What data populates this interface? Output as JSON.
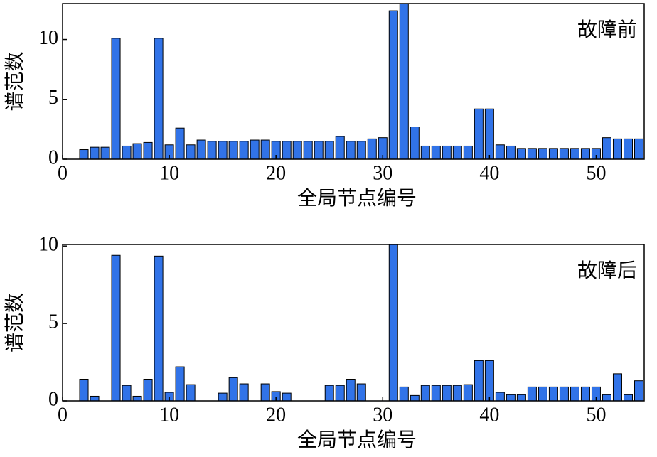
{
  "chart_data": [
    {
      "type": "bar",
      "annotation": "故障前",
      "xlabel": "全局节点编号",
      "ylabel": "谱范数",
      "x": [
        2,
        3,
        4,
        5,
        6,
        7,
        8,
        9,
        10,
        11,
        12,
        13,
        14,
        15,
        16,
        17,
        18,
        19,
        20,
        21,
        22,
        23,
        24,
        25,
        26,
        27,
        28,
        29,
        30,
        31,
        32,
        33,
        34,
        35,
        36,
        37,
        38,
        39,
        40,
        41,
        42,
        43,
        44,
        45,
        46,
        47,
        48,
        49,
        50,
        51,
        52,
        53,
        54
      ],
      "values": [
        0.8,
        1.0,
        1.0,
        10.1,
        1.1,
        1.3,
        1.4,
        10.1,
        1.2,
        2.6,
        1.2,
        1.6,
        1.5,
        1.5,
        1.5,
        1.5,
        1.6,
        1.6,
        1.5,
        1.5,
        1.5,
        1.5,
        1.5,
        1.5,
        1.9,
        1.5,
        1.5,
        1.7,
        1.8,
        12.4,
        13,
        2.7,
        1.1,
        1.1,
        1.1,
        1.1,
        1.1,
        4.2,
        4.2,
        1.2,
        1.1,
        0.9,
        0.9,
        0.9,
        0.9,
        0.9,
        0.9,
        0.9,
        0.9,
        1.8,
        1.7,
        1.7,
        1.7
      ],
      "color": "#3173e8",
      "xlim": [
        0,
        54.5
      ],
      "ylim": [
        0,
        13
      ],
      "xticks": [
        0,
        10,
        20,
        30,
        40,
        50
      ],
      "yticks": [
        0,
        5,
        10
      ]
    },
    {
      "type": "bar",
      "annotation": "故障后",
      "xlabel": "全局节点编号",
      "ylabel": "谱范数",
      "x": [
        2,
        3,
        4,
        5,
        6,
        7,
        8,
        9,
        10,
        11,
        12,
        13,
        14,
        15,
        16,
        17,
        18,
        19,
        20,
        21,
        22,
        23,
        24,
        25,
        26,
        27,
        28,
        29,
        30,
        31,
        32,
        33,
        34,
        35,
        36,
        37,
        38,
        39,
        40,
        41,
        42,
        43,
        44,
        45,
        46,
        47,
        48,
        49,
        50,
        51,
        52,
        53,
        54
      ],
      "values": [
        1.4,
        0.3,
        0,
        9.4,
        1.0,
        0.3,
        1.4,
        9.35,
        0.55,
        2.2,
        1.05,
        0,
        0,
        0.5,
        1.5,
        1.1,
        0,
        1.1,
        0.6,
        0.5,
        0,
        0,
        0,
        1.0,
        1.0,
        1.4,
        1.1,
        0,
        0,
        10.1,
        0.9,
        0.35,
        1.0,
        1.0,
        1.0,
        1.0,
        1.05,
        2.6,
        2.6,
        0.55,
        0.4,
        0.4,
        0.9,
        0.9,
        0.9,
        0.9,
        0.9,
        0.9,
        0.9,
        0.4,
        1.75,
        0.4,
        1.3
      ],
      "color": "#3173e8",
      "xlim": [
        0,
        54.5
      ],
      "ylim": [
        0,
        10.1
      ],
      "xticks": [
        0,
        10,
        20,
        30,
        40,
        50
      ],
      "yticks": [
        0,
        5,
        10
      ]
    }
  ]
}
